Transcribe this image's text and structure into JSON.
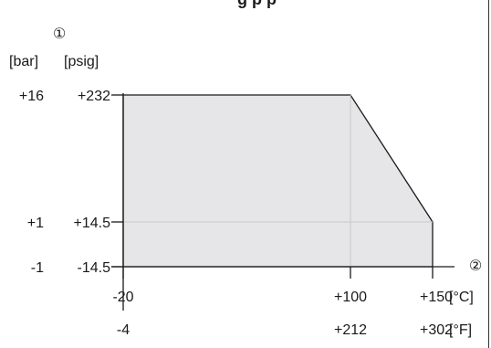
{
  "header_fragment": "g  p  p",
  "marker_pressure": "①",
  "marker_temperature": "②",
  "colors": {
    "fill": "#e6e6e8",
    "line": "#1a1a1a",
    "grid": "#c8c8c8"
  },
  "chart_data": {
    "type": "area",
    "title": "",
    "y_units": [
      "[bar]",
      "[psig]"
    ],
    "x_units": [
      "[°C]",
      "[°F]"
    ],
    "x_range": [
      -20,
      150
    ],
    "y_range": [
      -1,
      16
    ],
    "envelope": {
      "x_celsius": [
        -20,
        100,
        150,
        150,
        -20
      ],
      "y_bar": [
        16,
        16,
        1,
        -1,
        -1
      ]
    },
    "x_ticks": [
      {
        "celsius": -20,
        "c_label": "-20",
        "f_label": "-4"
      },
      {
        "celsius": 100,
        "c_label": "+100",
        "f_label": "+212"
      },
      {
        "celsius": 150,
        "c_label": "+150",
        "f_label": "+302"
      }
    ],
    "y_ticks": [
      {
        "bar": 16,
        "bar_label": "+16",
        "psig_label": "+232"
      },
      {
        "bar": 1,
        "bar_label": "+1",
        "psig_label": "+14.5"
      },
      {
        "bar": -1,
        "bar_label": "-1",
        "psig_label": "-14.5"
      }
    ],
    "gridlines": {
      "x_celsius": [
        100
      ],
      "y_bar": [
        1
      ]
    }
  }
}
